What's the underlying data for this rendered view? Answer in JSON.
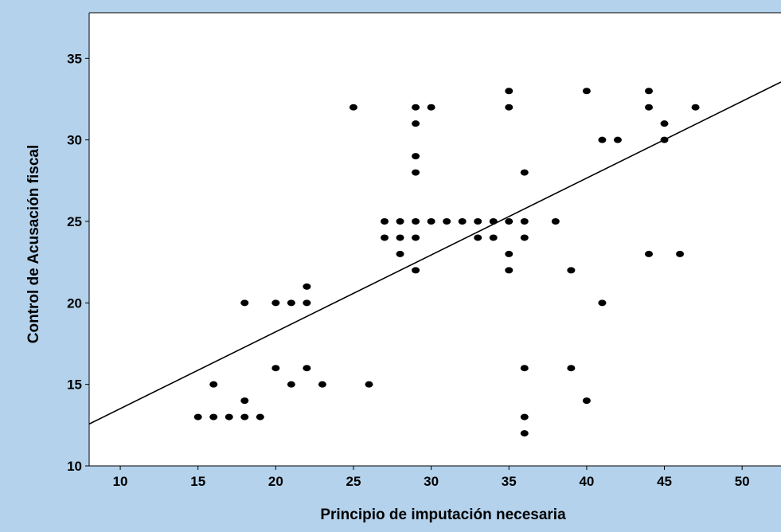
{
  "chart_data": {
    "type": "scatter",
    "title": "",
    "xlabel": "Principio de imputación necesaria",
    "ylabel": "Control de Acusación fiscal",
    "xlim": [
      8,
      52.5
    ],
    "ylim": [
      10,
      37.8
    ],
    "xticks": [
      10,
      15,
      20,
      25,
      30,
      35,
      40,
      45,
      50
    ],
    "yticks": [
      10,
      15,
      20,
      25,
      30,
      35
    ],
    "grid": false,
    "legend": "none",
    "fit_line": {
      "intercept": 8.8,
      "slope": 0.4714
    },
    "colors": {
      "background": "#b4d2ec",
      "plot_area": "#ffffff",
      "points": "#000000",
      "line": "#000000"
    },
    "points": [
      {
        "x": 15,
        "y": 13
      },
      {
        "x": 16,
        "y": 13
      },
      {
        "x": 16,
        "y": 15
      },
      {
        "x": 17,
        "y": 13
      },
      {
        "x": 18,
        "y": 13
      },
      {
        "x": 18,
        "y": 14
      },
      {
        "x": 18,
        "y": 20
      },
      {
        "x": 19,
        "y": 13
      },
      {
        "x": 20,
        "y": 16
      },
      {
        "x": 20,
        "y": 20
      },
      {
        "x": 21,
        "y": 15
      },
      {
        "x": 21,
        "y": 20
      },
      {
        "x": 22,
        "y": 16
      },
      {
        "x": 22,
        "y": 20
      },
      {
        "x": 22,
        "y": 21
      },
      {
        "x": 23,
        "y": 15
      },
      {
        "x": 25,
        "y": 32
      },
      {
        "x": 26,
        "y": 15
      },
      {
        "x": 27,
        "y": 24
      },
      {
        "x": 27,
        "y": 25
      },
      {
        "x": 28,
        "y": 23
      },
      {
        "x": 28,
        "y": 24
      },
      {
        "x": 28,
        "y": 25
      },
      {
        "x": 29,
        "y": 22
      },
      {
        "x": 29,
        "y": 24
      },
      {
        "x": 29,
        "y": 25
      },
      {
        "x": 29,
        "y": 28
      },
      {
        "x": 29,
        "y": 29
      },
      {
        "x": 29,
        "y": 31
      },
      {
        "x": 29,
        "y": 32
      },
      {
        "x": 30,
        "y": 25
      },
      {
        "x": 30,
        "y": 32
      },
      {
        "x": 31,
        "y": 25
      },
      {
        "x": 32,
        "y": 25
      },
      {
        "x": 33,
        "y": 24
      },
      {
        "x": 33,
        "y": 25
      },
      {
        "x": 34,
        "y": 24
      },
      {
        "x": 34,
        "y": 25
      },
      {
        "x": 35,
        "y": 22
      },
      {
        "x": 35,
        "y": 23
      },
      {
        "x": 35,
        "y": 25
      },
      {
        "x": 35,
        "y": 32
      },
      {
        "x": 35,
        "y": 33
      },
      {
        "x": 36,
        "y": 12
      },
      {
        "x": 36,
        "y": 13
      },
      {
        "x": 36,
        "y": 16
      },
      {
        "x": 36,
        "y": 24
      },
      {
        "x": 36,
        "y": 25
      },
      {
        "x": 36,
        "y": 28
      },
      {
        "x": 38,
        "y": 25
      },
      {
        "x": 39,
        "y": 16
      },
      {
        "x": 39,
        "y": 22
      },
      {
        "x": 40,
        "y": 14
      },
      {
        "x": 40,
        "y": 33
      },
      {
        "x": 41,
        "y": 20
      },
      {
        "x": 41,
        "y": 30
      },
      {
        "x": 42,
        "y": 30
      },
      {
        "x": 44,
        "y": 23
      },
      {
        "x": 44,
        "y": 32
      },
      {
        "x": 44,
        "y": 33
      },
      {
        "x": 45,
        "y": 30
      },
      {
        "x": 45,
        "y": 31
      },
      {
        "x": 46,
        "y": 23
      },
      {
        "x": 47,
        "y": 32
      }
    ]
  }
}
